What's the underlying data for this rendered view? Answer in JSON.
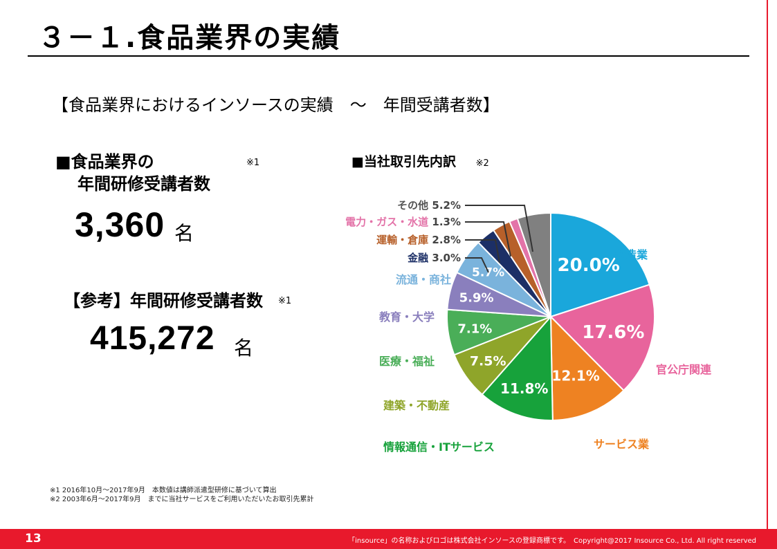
{
  "slide": {
    "title": "３－１.食品業界の実績",
    "subtitle": "【食品業界におけるインソースの実績　～　年間受講者数】",
    "section1": {
      "line1": "■食品業界の",
      "line2": "年間研修受講者数",
      "note": "※1",
      "value": "3,360",
      "unit": "名"
    },
    "section2": {
      "label": "【参考】年間研修受講者数",
      "note": "※1",
      "value": "415,272",
      "unit": "名"
    },
    "chart_heading": "■当社取引先内訳",
    "chart_note": "※2",
    "footnotes": [
      "※1 2016年10月～2017年9月　本数値は講師派遣型研修に基づいて算出",
      "※2 2003年6月～2017年9月　までに当社サービスをご利用いただいたお取引先累計"
    ],
    "footer": {
      "page_number": "13",
      "copyright": "「insource」の名称およびロゴは株式会社インソースの登録商標です。　Copyright@2017 Insource Co., Ltd. All right reserved"
    }
  },
  "chart_data": {
    "type": "pie",
    "slices": [
      {
        "label": "製造業",
        "value": 20.0,
        "display": "20.0%",
        "color": "#1aa7db"
      },
      {
        "label": "官公庁関連",
        "value": 17.6,
        "display": "17.6%",
        "color": "#e8649c"
      },
      {
        "label": "サービス業",
        "value": 12.1,
        "display": "12.1%",
        "color": "#ee8222"
      },
      {
        "label": "情報通信・ITサービス",
        "value": 11.8,
        "display": "11.8%",
        "color": "#17a23b"
      },
      {
        "label": "建築・不動産",
        "value": 7.5,
        "display": "7.5%",
        "color": "#8fa52a"
      },
      {
        "label": "医療・福祉",
        "value": 7.1,
        "display": "7.1%",
        "color": "#4aae58"
      },
      {
        "label": "教育・大学",
        "value": 5.9,
        "display": "5.9%",
        "color": "#8a7fbd"
      },
      {
        "label": "流通・商社",
        "value": 5.7,
        "display": "5.7%",
        "color": "#7ab3dc"
      },
      {
        "label": "金融",
        "value": 3.0,
        "display": "3.0%",
        "color": "#1c2f66"
      },
      {
        "label": "運輸・倉庫",
        "value": 2.8,
        "display": "2.8%",
        "color": "#b7602a"
      },
      {
        "label": "電力・ガス・水道",
        "value": 1.3,
        "display": "1.3%",
        "color": "#e373a8"
      },
      {
        "label": "その他",
        "value": 5.2,
        "display": "5.2%",
        "color": "#808080"
      }
    ]
  }
}
